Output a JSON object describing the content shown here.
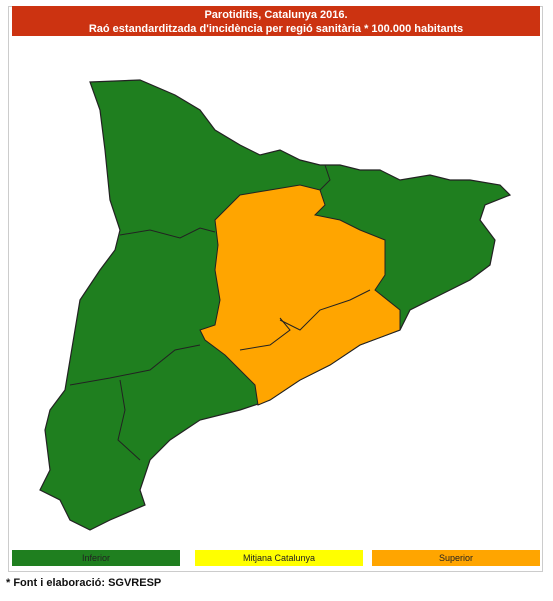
{
  "header": {
    "title": "Parotiditis, Catalunya 2016.",
    "subtitle": "Raó estandarditzada d'incidència per regió sanitària * 100.000 habitants"
  },
  "legend": {
    "items": [
      {
        "label": "Inferior",
        "color": "#1f7f1f"
      },
      {
        "label": "Mitjana Catalunya",
        "color": "#ffff00"
      },
      {
        "label": "Superior",
        "color": "#ffa500"
      }
    ]
  },
  "footnote": "* Font i elaboració: SGVRESP"
}
